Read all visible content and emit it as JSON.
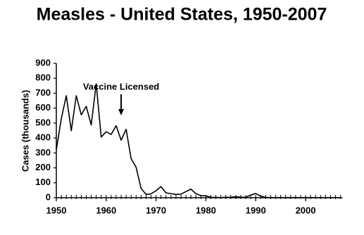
{
  "chart_data": {
    "type": "line",
    "title": "Measles - United States, 1950-2007",
    "y_label": "Cases (thousands)",
    "annotations": [
      {
        "text": "Vaccine Licensed",
        "x": 1963
      }
    ],
    "x": [
      1950,
      1951,
      1952,
      1953,
      1954,
      1955,
      1956,
      1957,
      1958,
      1959,
      1960,
      1961,
      1962,
      1963,
      1964,
      1965,
      1966,
      1967,
      1968,
      1969,
      1970,
      1971,
      1972,
      1973,
      1974,
      1975,
      1976,
      1977,
      1978,
      1979,
      1980,
      1981,
      1982,
      1983,
      1984,
      1985,
      1986,
      1987,
      1988,
      1989,
      1990,
      1991,
      1992,
      1993,
      1994,
      1995,
      1996,
      1997,
      1998,
      1999,
      2000,
      2001,
      2002,
      2003,
      2004,
      2005,
      2006,
      2007
    ],
    "series": [
      {
        "name": "Cases",
        "color": "#000000",
        "values": [
          319,
          530,
          683,
          449,
          683,
          555,
          612,
          487,
          763,
          406,
          442,
          424,
          482,
          385,
          458,
          262,
          204,
          63,
          22,
          26,
          47,
          75,
          32,
          27,
          22,
          24,
          41,
          57,
          27,
          14,
          13,
          3,
          2,
          1,
          3,
          3,
          6,
          4,
          3,
          18,
          28,
          10,
          2,
          0.3,
          1,
          0.3,
          0.5,
          0.1,
          0.1,
          0.1,
          0.1,
          0.1,
          0.04,
          0.06,
          0.04,
          0.07,
          0.06,
          0.04
        ]
      }
    ],
    "xlim": [
      1950,
      2007
    ],
    "xticks": [
      1950,
      1960,
      1970,
      1980,
      1990,
      2000
    ],
    "ylim": [
      0,
      900
    ],
    "yticks": [
      0,
      100,
      200,
      300,
      400,
      500,
      600,
      700,
      800,
      900
    ],
    "grid": false
  }
}
